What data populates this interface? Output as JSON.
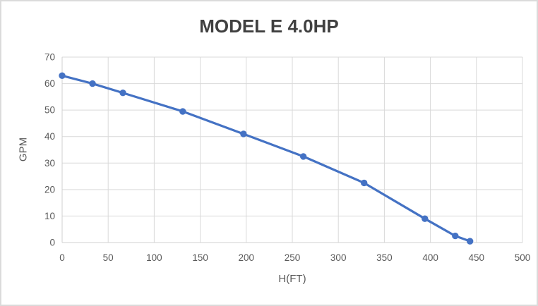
{
  "chart_data": {
    "type": "line",
    "title": "MODEL E 4.0HP",
    "xlabel": "H(FT)",
    "ylabel": "GPM",
    "xlim": [
      0,
      500
    ],
    "ylim": [
      0,
      70
    ],
    "x_ticks": [
      0,
      50,
      100,
      150,
      200,
      250,
      300,
      350,
      400,
      450,
      500
    ],
    "y_ticks": [
      0,
      10,
      20,
      30,
      40,
      50,
      60,
      70
    ],
    "grid": true,
    "legend_position": "none",
    "series": [
      {
        "name": "MODEL E 4.0HP",
        "color": "#4472C4",
        "marker": "circle",
        "line_style": "solid",
        "points": [
          [
            0,
            63
          ],
          [
            33,
            60
          ],
          [
            66,
            56.5
          ],
          [
            131,
            49.5
          ],
          [
            197,
            41
          ],
          [
            262,
            32.5
          ],
          [
            328,
            22.5
          ],
          [
            394,
            9
          ],
          [
            427,
            2.5
          ],
          [
            443,
            0.5
          ]
        ]
      }
    ],
    "colors": {
      "series": "#4472C4",
      "gridline": "#D9D9D9",
      "axis_line": "#D0D0D0",
      "tick_label": "#595959",
      "axis_title": "#595959",
      "title": "#404040",
      "background": "#FFFFFF",
      "frame_border": "#DBDBDB"
    }
  }
}
